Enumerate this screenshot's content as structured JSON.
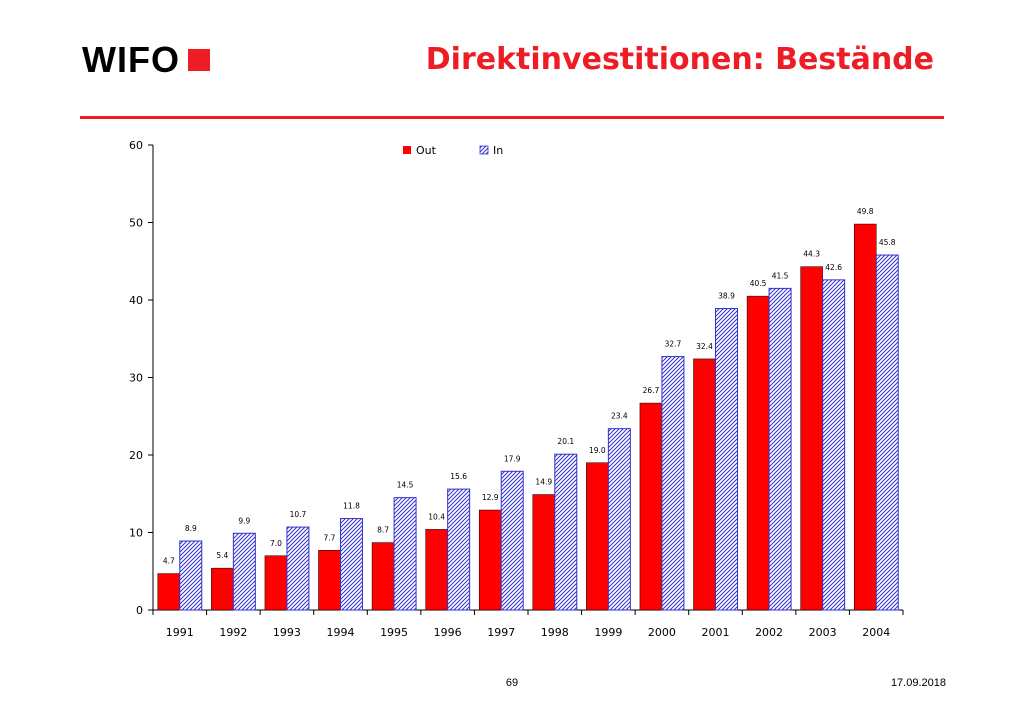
{
  "header": {
    "logo_text": "WIFO",
    "title": "Direktinvestitionen: Bestände"
  },
  "footer": {
    "page_number": "69",
    "date": "17.09.2018"
  },
  "colors": {
    "accent": "#ee1c25",
    "out_series": "#ff0000",
    "in_series": "#3333cc"
  },
  "chart_data": {
    "type": "bar",
    "title": "",
    "xlabel": "",
    "ylabel": "",
    "ylim": [
      0,
      60
    ],
    "yticks": [
      "0",
      "10",
      "20",
      "30",
      "40",
      "50",
      "60"
    ],
    "categories": [
      "1991",
      "1992",
      "1993",
      "1994",
      "1995",
      "1996",
      "1997",
      "1998",
      "1999",
      "2000",
      "2001",
      "2002",
      "2003",
      "2004"
    ],
    "series": [
      {
        "name": "Out",
        "fill": "solid",
        "values": [
          4.7,
          5.4,
          7.0,
          7.7,
          8.7,
          10.4,
          12.9,
          14.9,
          19.0,
          26.7,
          32.4,
          40.5,
          44.3,
          49.8
        ],
        "labels": [
          "4.7",
          "5.4",
          "7.0",
          "7.7",
          "8.7",
          "10.4",
          "12.9",
          "14.9",
          "19.0",
          "26.7",
          "32.4",
          "40.5",
          "44.3",
          "49.8"
        ]
      },
      {
        "name": "In",
        "fill": "hatched",
        "values": [
          8.9,
          9.9,
          10.7,
          11.8,
          14.5,
          15.6,
          17.9,
          20.1,
          23.4,
          32.7,
          38.9,
          41.5,
          42.6,
          45.8
        ],
        "labels": [
          "8.9",
          "9.9",
          "10.7",
          "11.8",
          "14.5",
          "15.6",
          "17.9",
          "20.1",
          "23.4",
          "32.7",
          "38.9",
          "41.5",
          "42.6",
          "45.8"
        ]
      }
    ],
    "legend_position": "top-center",
    "grid": false
  }
}
